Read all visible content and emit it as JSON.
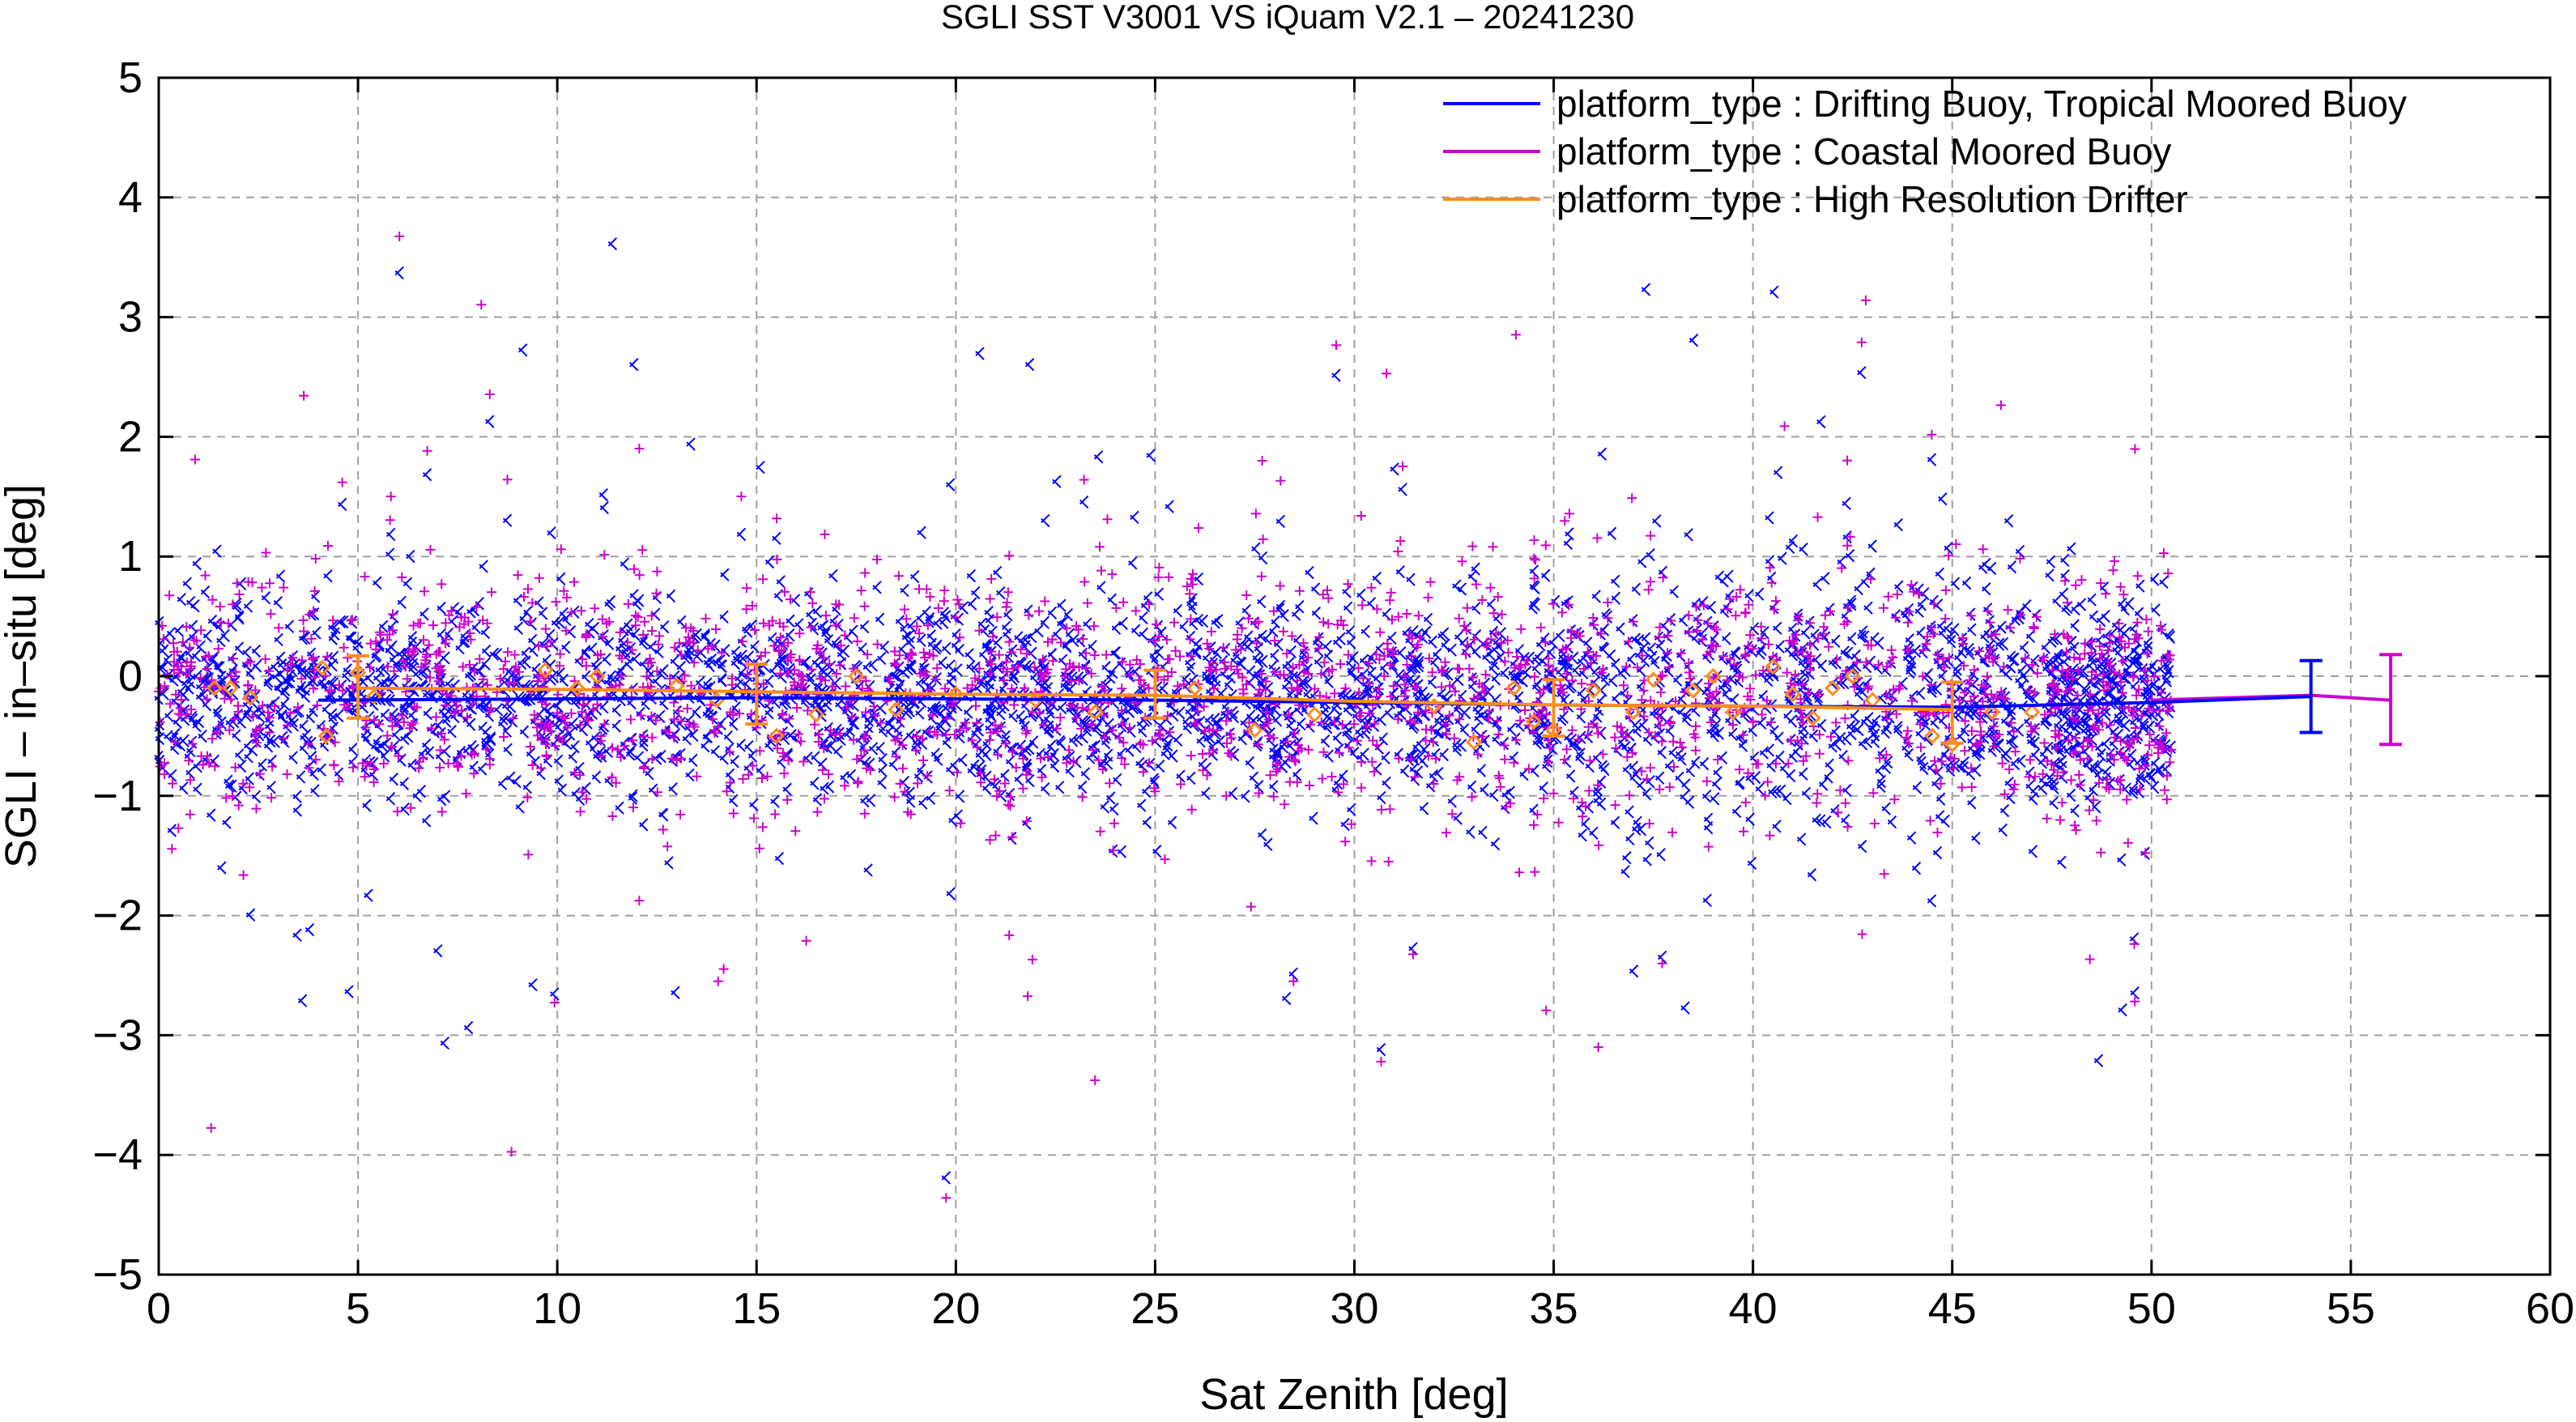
{
  "chart_data": {
    "type": "scatter",
    "title": "SGLI SST V3001 VS iQuam V2.1  – 20241230",
    "xlabel": "Sat Zenith [deg]",
    "ylabel": "SGLI – in–situ [deg]",
    "xlim": [
      0,
      60
    ],
    "ylim": [
      -5,
      5
    ],
    "x_ticks": [
      "0",
      "5",
      "10",
      "15",
      "20",
      "25",
      "30",
      "35",
      "40",
      "45",
      "50",
      "55",
      "60"
    ],
    "y_ticks": [
      "−5",
      "−4",
      "−3",
      "−2",
      "−1",
      "0",
      "1",
      "2",
      "3",
      "4",
      "5"
    ],
    "grid": true,
    "legend_position": "top-right",
    "series": [
      {
        "name": "platform_type : Drifting Buoy, Tropical Moored Buoy",
        "color": "#0000ff",
        "marker": "x",
        "mean_line": {
          "x": [
            4,
            10,
            15,
            20,
            25,
            30,
            35,
            40,
            45,
            50,
            54
          ],
          "y": [
            -0.2,
            -0.19,
            -0.18,
            -0.19,
            -0.2,
            -0.22,
            -0.24,
            -0.25,
            -0.26,
            -0.22,
            -0.17
          ]
        },
        "error_bar": {
          "x": 54,
          "y": -0.17,
          "low": -0.47,
          "high": 0.13
        }
      },
      {
        "name": "platform_type : Coastal Moored Buoy",
        "color": "#cc00cc",
        "marker": "+",
        "mean_line": {
          "x": [
            50,
            52,
            54,
            56
          ],
          "y": [
            -0.2,
            -0.18,
            -0.16,
            -0.2
          ]
        },
        "error_bar": {
          "x": 56,
          "y": -0.2,
          "low": -0.57,
          "high": 0.18
        }
      },
      {
        "name": "platform_type : High Resolution Drifter",
        "color": "#ff8c1a",
        "marker": "diamond",
        "mean_line": {
          "x": [
            5,
            10,
            15,
            20,
            25,
            30,
            35,
            40,
            45
          ],
          "y": [
            -0.1,
            -0.11,
            -0.13,
            -0.15,
            -0.16,
            -0.21,
            -0.24,
            -0.25,
            -0.28
          ]
        },
        "error_bars": [
          {
            "x": 5,
            "low": -0.35,
            "high": 0.17
          },
          {
            "x": 15,
            "low": -0.4,
            "high": 0.1
          },
          {
            "x": 25,
            "low": -0.35,
            "high": 0.05
          },
          {
            "x": 35,
            "low": -0.5,
            "high": -0.03
          },
          {
            "x": 45,
            "low": -0.56,
            "high": -0.05
          }
        ],
        "points": [
          [
            1.4,
            -0.1
          ],
          [
            1.8,
            -0.1
          ],
          [
            2.3,
            -0.18
          ],
          [
            4.1,
            0.07
          ],
          [
            4.2,
            -0.5
          ],
          [
            5.0,
            0.03
          ],
          [
            5.4,
            -0.17
          ],
          [
            9.7,
            0.05
          ],
          [
            10.5,
            -0.1
          ],
          [
            11.0,
            0.0
          ],
          [
            13.0,
            -0.08
          ],
          [
            14.0,
            -0.2
          ],
          [
            15.5,
            -0.5
          ],
          [
            16.5,
            -0.32
          ],
          [
            17.5,
            0.0
          ],
          [
            18.5,
            -0.28
          ],
          [
            20.0,
            -0.15
          ],
          [
            22.0,
            -0.2
          ],
          [
            23.5,
            -0.3
          ],
          [
            26.0,
            -0.1
          ],
          [
            27.5,
            -0.45
          ],
          [
            29.0,
            -0.32
          ],
          [
            32.0,
            -0.25
          ],
          [
            33.0,
            -0.55
          ],
          [
            34.0,
            -0.1
          ],
          [
            34.5,
            -0.38
          ],
          [
            35.0,
            -0.45
          ],
          [
            36.0,
            -0.12
          ],
          [
            37.0,
            -0.3
          ],
          [
            37.5,
            -0.03
          ],
          [
            38.5,
            -0.12
          ],
          [
            39.0,
            0.0
          ],
          [
            39.5,
            -0.3
          ],
          [
            40.5,
            0.08
          ],
          [
            41.0,
            -0.15
          ],
          [
            41.5,
            -0.35
          ],
          [
            42.0,
            -0.1
          ],
          [
            42.5,
            0.0
          ],
          [
            43.0,
            -0.2
          ],
          [
            44.5,
            -0.5
          ],
          [
            45.0,
            -0.57
          ],
          [
            46.0,
            -0.3
          ],
          [
            47.0,
            -0.3
          ]
        ]
      }
    ],
    "colors": {
      "blue": "#0000ff",
      "magenta": "#cc00cc",
      "orange": "#ff8c1a",
      "grid": "#a0a0a0"
    }
  }
}
